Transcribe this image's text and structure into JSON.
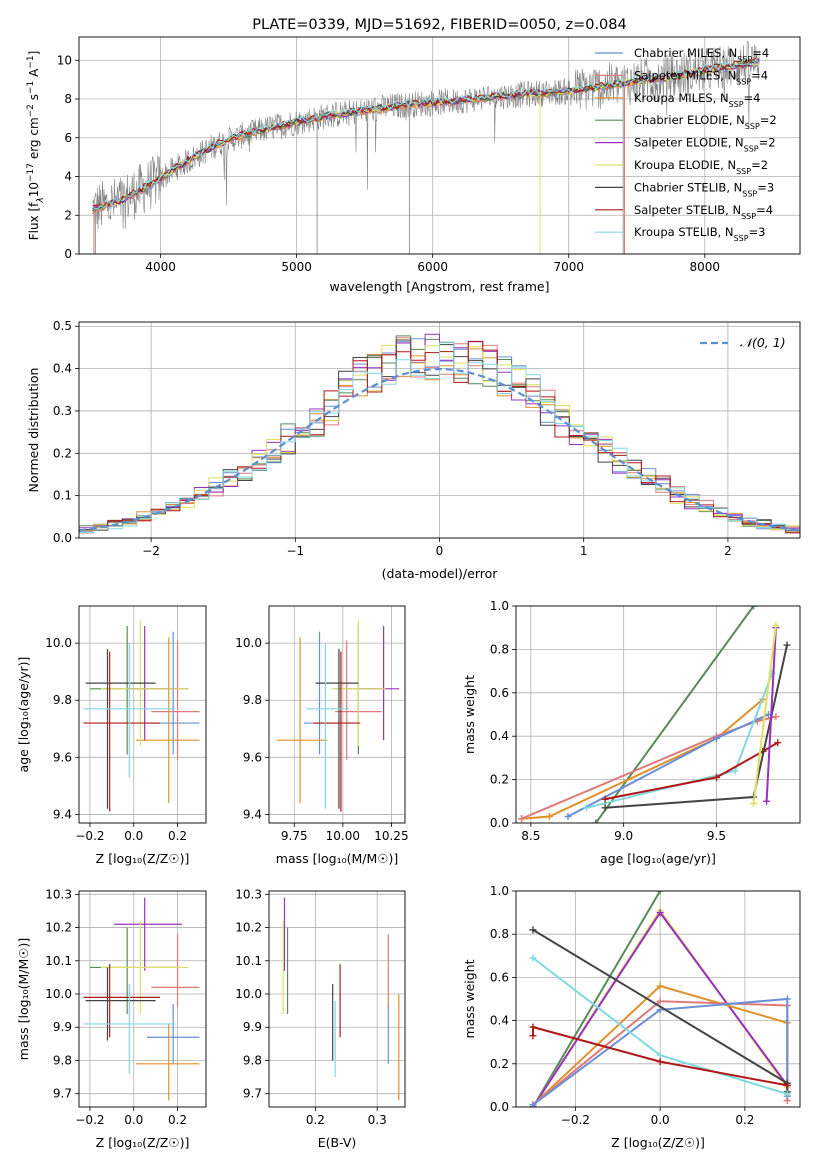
{
  "chart_data": [
    {
      "id": "spectrum",
      "type": "line",
      "title": "PLATE=0339, MJD=51692, FIBERID=0050, z=0.084",
      "xlabel": "wavelength [Angstrom, rest frame]",
      "ylabel": "Flux [f_λ10^-17 erg cm^-2 s^-1 A^-1]",
      "xlim": [
        3400,
        8700
      ],
      "ylim": [
        0,
        11.2
      ],
      "xticks": [
        4000,
        5000,
        6000,
        7000,
        8000
      ],
      "yticks": [
        0,
        2,
        4,
        6,
        8,
        10
      ],
      "legend_position": "right",
      "legend": [
        {
          "name": "Chabrier MILES, N",
          "sub": "SSP",
          "tail": "=4",
          "color": "#6a8fd6"
        },
        {
          "name": "Salpeter MILES, N",
          "sub": "SSP",
          "tail": "=4",
          "color": "#e07a7a"
        },
        {
          "name": "Kroupa MILES, N",
          "sub": "SSP",
          "tail": "=4",
          "color": "#e0902a"
        },
        {
          "name": "Chabrier ELODIE, N",
          "sub": "SSP",
          "tail": "=2",
          "color": "#5a8a5a"
        },
        {
          "name": "Salpeter ELODIE, N",
          "sub": "SSP",
          "tail": "=2",
          "color": "#9a30c0"
        },
        {
          "name": "Kroupa ELODIE, N",
          "sub": "SSP",
          "tail": "=2",
          "color": "#e0e060"
        },
        {
          "name": "Chabrier STELIB, N",
          "sub": "SSP",
          "tail": "=3",
          "color": "#444444"
        },
        {
          "name": "Salpeter STELIB, N",
          "sub": "SSP",
          "tail": "=4",
          "color": "#b01818"
        },
        {
          "name": "Kroupa STELIB, N",
          "sub": "SSP",
          "tail": "=3",
          "color": "#80d8e0"
        }
      ],
      "data_series": {
        "name": "data",
        "color": "#808080"
      },
      "continuum": {
        "x": [
          3500,
          3600,
          3700,
          3800,
          3900,
          4000,
          4100,
          4200,
          4300,
          4400,
          4500,
          4600,
          4800,
          5000,
          5200,
          5400,
          5600,
          5800,
          6000,
          6200,
          6400,
          6600,
          6800,
          7000,
          7200,
          7400,
          7600,
          7800,
          8000,
          8200,
          8400
        ],
        "y": [
          2.3,
          2.5,
          2.7,
          3.1,
          3.5,
          3.9,
          4.4,
          4.8,
          5.2,
          5.6,
          5.9,
          6.1,
          6.5,
          6.8,
          7.1,
          7.3,
          7.5,
          7.7,
          7.8,
          7.9,
          8.1,
          8.2,
          8.3,
          8.4,
          8.6,
          8.8,
          9.0,
          9.2,
          9.5,
          9.7,
          9.9
        ]
      }
    },
    {
      "id": "residuals",
      "type": "histogram",
      "xlabel": "(data-model)/error",
      "ylabel": "Normed distribution",
      "xlim": [
        -2.5,
        2.5
      ],
      "ylim": [
        0,
        0.51
      ],
      "xticks": [
        -2,
        -1,
        0,
        1,
        2
      ],
      "yticks": [
        0,
        0.1,
        0.2,
        0.3,
        0.4,
        0.5
      ],
      "bin_width": 0.1,
      "reference": {
        "label": "𝒩(0, 1)",
        "color": "#5a8fd6",
        "dashed": true
      },
      "legend_position": "top-right"
    },
    {
      "id": "age-vs-Z",
      "type": "errorbar",
      "xlabel": "Z [log₁₀(Z/Z☉)]",
      "ylabel": "age  [log₁₀(age/yr)]",
      "xlim": [
        -0.25,
        0.33
      ],
      "ylim": [
        9.37,
        10.13
      ],
      "xticks": [
        -0.2,
        0.0,
        0.2
      ],
      "yticks": [
        9.4,
        9.6,
        9.8,
        10.0
      ],
      "points": [
        {
          "color": "#6a8fd6",
          "x": 0.18,
          "xerr": [
            0.12,
            0.12
          ],
          "y": 9.72,
          "yerr": [
            0.11,
            0.32
          ]
        },
        {
          "color": "#e07a7a",
          "x": 0.2,
          "xerr": [
            0.12,
            0.1
          ],
          "y": 9.76,
          "yerr": [
            0.17,
            0.25
          ]
        },
        {
          "color": "#e0902a",
          "x": 0.16,
          "xerr": [
            0.15,
            0.14
          ],
          "y": 9.66,
          "yerr": [
            0.22,
            0.36
          ]
        },
        {
          "color": "#5a8a5a",
          "x": -0.03,
          "xerr": [
            0.17,
            0.23
          ],
          "y": 9.84,
          "yerr": [
            0.23,
            0.22
          ]
        },
        {
          "color": "#9a30c0",
          "x": 0.05,
          "xerr": [
            0.08,
            0.2
          ],
          "y": 9.84,
          "yerr": [
            0.18,
            0.22
          ]
        },
        {
          "color": "#e0e060",
          "x": 0.03,
          "xerr": [
            0.18,
            0.22
          ],
          "y": 9.84,
          "yerr": [
            0.2,
            0.24
          ]
        },
        {
          "color": "#444444",
          "x": -0.12,
          "xerr": [
            0.1,
            0.22
          ],
          "y": 9.86,
          "yerr": [
            0.44,
            0.12
          ]
        },
        {
          "color": "#b01818",
          "x": -0.11,
          "xerr": [
            0.12,
            0.23
          ],
          "y": 9.72,
          "yerr": [
            0.31,
            0.25
          ]
        },
        {
          "color": "#80d8e0",
          "x": -0.02,
          "xerr": [
            0.21,
            0.21
          ],
          "y": 9.77,
          "yerr": [
            0.24,
            0.23
          ]
        }
      ]
    },
    {
      "id": "age-vs-mass",
      "type": "errorbar",
      "xlabel": "mass [log₁₀(M/M☉)]",
      "ylabel": "",
      "xlim": [
        9.62,
        10.32
      ],
      "ylim": [
        9.37,
        10.13
      ],
      "xticks": [
        9.75,
        10.0,
        10.25
      ],
      "yticks": [
        9.4,
        9.6,
        9.8,
        10.0
      ],
      "points": [
        {
          "color": "#6a8fd6",
          "x": 9.88,
          "xerr": [
            0.08,
            0.1
          ],
          "y": 9.72,
          "yerr": [
            0.11,
            0.32
          ]
        },
        {
          "color": "#e07a7a",
          "x": 10.02,
          "xerr": [
            0.06,
            0.18
          ],
          "y": 9.76,
          "yerr": [
            0.17,
            0.25
          ]
        },
        {
          "color": "#e0902a",
          "x": 9.78,
          "xerr": [
            0.12,
            0.14
          ],
          "y": 9.66,
          "yerr": [
            0.22,
            0.36
          ]
        },
        {
          "color": "#5a8a5a",
          "x": 10.08,
          "xerr": [
            0.12,
            0.12
          ],
          "y": 9.84,
          "yerr": [
            0.23,
            0.22
          ]
        },
        {
          "color": "#9a30c0",
          "x": 10.21,
          "xerr": [
            0.14,
            0.08
          ],
          "y": 9.84,
          "yerr": [
            0.18,
            0.22
          ]
        },
        {
          "color": "#e0e060",
          "x": 10.08,
          "xerr": [
            0.14,
            0.14
          ],
          "y": 9.84,
          "yerr": [
            0.2,
            0.24
          ]
        },
        {
          "color": "#444444",
          "x": 9.98,
          "xerr": [
            0.12,
            0.1
          ],
          "y": 9.86,
          "yerr": [
            0.44,
            0.12
          ]
        },
        {
          "color": "#b01818",
          "x": 9.99,
          "xerr": [
            0.14,
            0.1
          ],
          "y": 9.72,
          "yerr": [
            0.31,
            0.25
          ]
        },
        {
          "color": "#80d8e0",
          "x": 9.91,
          "xerr": [
            0.1,
            0.12
          ],
          "y": 9.77,
          "yerr": [
            0.35,
            0.23
          ]
        }
      ]
    },
    {
      "id": "mass-weight-vs-age",
      "type": "line",
      "xlabel": "age  [log₁₀(age/yr)]",
      "ylabel": "mass weight",
      "xlim": [
        8.42,
        9.95
      ],
      "ylim": [
        0,
        1
      ],
      "xticks": [
        8.5,
        9.0,
        9.5
      ],
      "yticks": [
        0.0,
        0.2,
        0.4,
        0.6,
        0.8,
        1.0
      ],
      "series": [
        {
          "color": "#5a8a5a",
          "x": [
            8.85,
            9.7
          ],
          "y": [
            0.0,
            1.0
          ]
        },
        {
          "color": "#e0902a",
          "x": [
            8.45,
            8.6,
            9.5,
            9.75
          ],
          "y": [
            0.02,
            0.03,
            0.39,
            0.57
          ]
        },
        {
          "color": "#e07a7a",
          "x": [
            8.45,
            9.5,
            9.72,
            9.82
          ],
          "y": [
            0.02,
            0.4,
            0.47,
            0.49
          ]
        },
        {
          "color": "#6a8fd6",
          "x": [
            8.7,
            9.5,
            9.78
          ],
          "y": [
            0.03,
            0.39,
            0.5
          ]
        },
        {
          "color": "#80d8e0",
          "x": [
            8.8,
            9.6,
            9.8
          ],
          "y": [
            0.07,
            0.24,
            0.69
          ]
        },
        {
          "color": "#b01818",
          "x": [
            8.9,
            9.5,
            9.75,
            9.83
          ],
          "y": [
            0.11,
            0.21,
            0.33,
            0.37
          ]
        },
        {
          "color": "#444444",
          "x": [
            8.9,
            9.7,
            9.88
          ],
          "y": [
            0.07,
            0.12,
            0.82
          ]
        },
        {
          "color": "#9a30c0",
          "x": [
            9.77,
            9.82
          ],
          "y": [
            0.1,
            0.9
          ]
        },
        {
          "color": "#e0e060",
          "x": [
            9.7,
            9.82
          ],
          "y": [
            0.09,
            0.91
          ]
        }
      ]
    },
    {
      "id": "mass-vs-Z",
      "type": "errorbar",
      "xlabel": "Z [log₁₀(Z/Z☉)]",
      "ylabel": "mass [log₁₀(M/M☉)]",
      "xlim": [
        -0.25,
        0.33
      ],
      "ylim": [
        9.66,
        10.31
      ],
      "xticks": [
        -0.2,
        0.0,
        0.2
      ],
      "yticks": [
        9.7,
        9.8,
        9.9,
        10.0,
        10.1,
        10.2,
        10.3
      ],
      "points": [
        {
          "color": "#6a8fd6",
          "x": 0.18,
          "xerr": [
            0.12,
            0.12
          ],
          "y": 9.87,
          "yerr": [
            0.08,
            0.1
          ]
        },
        {
          "color": "#e07a7a",
          "x": 0.2,
          "xerr": [
            0.12,
            0.1
          ],
          "y": 10.02,
          "yerr": [
            0.06,
            0.16
          ]
        },
        {
          "color": "#e0902a",
          "x": 0.16,
          "xerr": [
            0.15,
            0.14
          ],
          "y": 9.79,
          "yerr": [
            0.11,
            0.12
          ]
        },
        {
          "color": "#5a8a5a",
          "x": -0.03,
          "xerr": [
            0.17,
            0.23
          ],
          "y": 10.08,
          "yerr": [
            0.14,
            0.12
          ]
        },
        {
          "color": "#9a30c0",
          "x": 0.05,
          "xerr": [
            0.14,
            0.17
          ],
          "y": 10.21,
          "yerr": [
            0.14,
            0.08
          ]
        },
        {
          "color": "#e0e060",
          "x": 0.03,
          "xerr": [
            0.18,
            0.22
          ],
          "y": 10.08,
          "yerr": [
            0.14,
            0.14
          ]
        },
        {
          "color": "#444444",
          "x": -0.12,
          "xerr": [
            0.1,
            0.22
          ],
          "y": 9.98,
          "yerr": [
            0.12,
            0.1
          ]
        },
        {
          "color": "#b01818",
          "x": -0.11,
          "xerr": [
            0.12,
            0.23
          ],
          "y": 9.99,
          "yerr": [
            0.12,
            0.1
          ]
        },
        {
          "color": "#80d8e0",
          "x": -0.02,
          "xerr": [
            0.21,
            0.21
          ],
          "y": 9.91,
          "yerr": [
            0.15,
            0.12
          ]
        }
      ]
    },
    {
      "id": "mass-vs-EBV",
      "type": "errorbar",
      "xlabel": "E(B-V)",
      "ylabel": "",
      "xlim": [
        0.125,
        0.345
      ],
      "ylim": [
        9.66,
        10.31
      ],
      "xticks": [
        0.2,
        0.3
      ],
      "yticks": [
        9.7,
        9.8,
        9.9,
        10.0,
        10.1,
        10.2,
        10.3
      ],
      "points": [
        {
          "color": "#6a8fd6",
          "x": 0.318,
          "y": 9.87,
          "yerr": [
            0.08,
            0.1
          ]
        },
        {
          "color": "#e07a7a",
          "x": 0.318,
          "y": 10.02,
          "yerr": [
            0.06,
            0.16
          ]
        },
        {
          "color": "#e0902a",
          "x": 0.335,
          "y": 9.82,
          "yerr": [
            0.14,
            0.18
          ]
        },
        {
          "color": "#5a8a5a",
          "x": 0.155,
          "y": 10.08,
          "yerr": [
            0.14,
            0.12
          ]
        },
        {
          "color": "#9a30c0",
          "x": 0.15,
          "y": 10.21,
          "yerr": [
            0.14,
            0.08
          ]
        },
        {
          "color": "#e0e060",
          "x": 0.148,
          "y": 10.08,
          "yerr": [
            0.14,
            0.14
          ]
        },
        {
          "color": "#444444",
          "x": 0.228,
          "y": 9.92,
          "yerr": [
            0.12,
            0.11
          ]
        },
        {
          "color": "#b01818",
          "x": 0.24,
          "y": 9.98,
          "yerr": [
            0.11,
            0.11
          ]
        },
        {
          "color": "#80d8e0",
          "x": 0.232,
          "y": 9.87,
          "yerr": [
            0.12,
            0.11
          ]
        }
      ]
    },
    {
      "id": "mass-weight-vs-Z",
      "type": "line",
      "xlabel": "Z [log₁₀(Z/Z☉)]",
      "ylabel": "mass weight",
      "xlim": [
        -0.34,
        0.33
      ],
      "ylim": [
        0,
        1
      ],
      "xticks": [
        -0.2,
        0.0,
        0.2
      ],
      "yticks": [
        0.0,
        0.2,
        0.4,
        0.6,
        0.8,
        1.0
      ],
      "series": [
        {
          "color": "#5a8a5a",
          "x": [
            -0.3,
            0.0
          ],
          "y": [
            0.0,
            1.0
          ]
        },
        {
          "color": "#e0e060",
          "x": [
            -0.3,
            0.0,
            0.3
          ],
          "y": [
            0.0,
            0.91,
            0.09
          ]
        },
        {
          "color": "#9a30c0",
          "x": [
            -0.3,
            0.0,
            0.3
          ],
          "y": [
            0.0,
            0.9,
            0.1
          ]
        },
        {
          "color": "#e0902a",
          "x": [
            -0.3,
            0.0,
            0.3,
            0.3
          ],
          "y": [
            0.01,
            0.56,
            0.39,
            0.03
          ]
        },
        {
          "color": "#e07a7a",
          "x": [
            -0.3,
            0.0,
            0.3,
            0.3
          ],
          "y": [
            0.01,
            0.49,
            0.47,
            0.03
          ]
        },
        {
          "color": "#6a8fd6",
          "x": [
            -0.3,
            0.0,
            0.3,
            0.3
          ],
          "y": [
            0.01,
            0.45,
            0.5,
            0.05
          ]
        },
        {
          "color": "#444444",
          "x": [
            -0.3,
            0.3,
            0.3
          ],
          "y": [
            0.82,
            0.11,
            0.07
          ]
        },
        {
          "color": "#80d8e0",
          "x": [
            -0.3,
            0.0,
            0.3
          ],
          "y": [
            0.69,
            0.24,
            0.06
          ]
        },
        {
          "color": "#b01818",
          "x": [
            -0.3,
            -0.3,
            0.0,
            0.3
          ],
          "y": [
            0.33,
            0.37,
            0.21,
            0.1
          ]
        }
      ]
    }
  ]
}
